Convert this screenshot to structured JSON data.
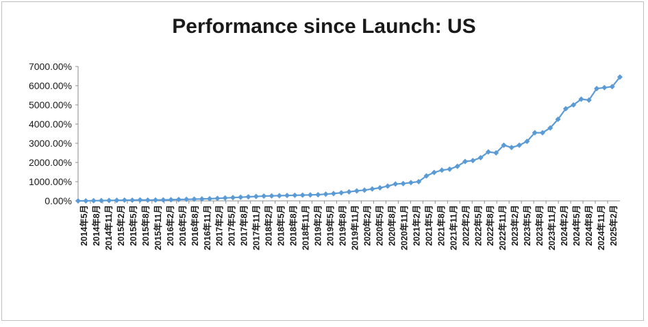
{
  "chart_data": {
    "type": "line",
    "title": "Performance since Launch: US",
    "xlabel": "",
    "ylabel": "",
    "ylim": [
      0,
      7000
    ],
    "y_ticks": [
      "0.00%",
      "1000.00%",
      "2000.00%",
      "3000.00%",
      "4000.00%",
      "5000.00%",
      "6000.00%",
      "7000.00%"
    ],
    "grid": false,
    "legend": "none",
    "x_tick_labels": [
      "2014年5月",
      "2014年8月",
      "2014年11月",
      "2015年2月",
      "2015年5月",
      "2015年8月",
      "2015年11月",
      "2016年2月",
      "2016年5月",
      "2016年8月",
      "2016年11月",
      "2017年2月",
      "2017年5月",
      "2017年8月",
      "2017年11月",
      "2018年2月",
      "2018年5月",
      "2018年8月",
      "2018年11月",
      "2019年2月",
      "2019年5月",
      "2019年8月",
      "2019年11月",
      "2020年2月",
      "2020年5月",
      "2020年8月",
      "2020年11月",
      "2021年2月",
      "2021年5月",
      "2021年8月",
      "2021年11月",
      "2022年2月",
      "2022年5月",
      "2022年8月",
      "2022年11月",
      "2023年2月",
      "2023年5月",
      "2023年8月",
      "2023年11月",
      "2024年2月",
      "2024年5月",
      "2024年8月",
      "2024年11月",
      "2025年2月"
    ],
    "series": [
      {
        "color": "#5b9bd5",
        "values": [
          0,
          0,
          10,
          15,
          20,
          30,
          40,
          35,
          50,
          40,
          45,
          50,
          60,
          70,
          80,
          90,
          100,
          110,
          130,
          150,
          170,
          190,
          210,
          230,
          250,
          260,
          270,
          280,
          290,
          300,
          310,
          320,
          350,
          380,
          420,
          470,
          520,
          560,
          620,
          680,
          770,
          880,
          900,
          950,
          1000,
          1300,
          1480,
          1600,
          1650,
          1800,
          2050,
          2100,
          2250,
          2550,
          2500,
          2900,
          2780,
          2900,
          3100,
          3550,
          3550,
          3800,
          4250,
          4800,
          5000,
          5300,
          5250,
          5850,
          5900,
          5950,
          6450
        ]
      }
    ]
  }
}
